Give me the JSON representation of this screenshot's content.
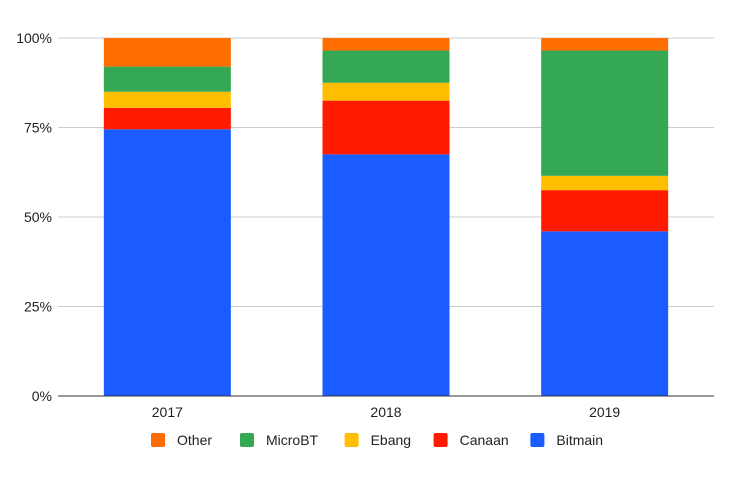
{
  "chart_data": {
    "type": "bar",
    "stacked": true,
    "percent_stacked": true,
    "title": "",
    "xlabel": "",
    "ylabel": "",
    "categories": [
      "2017",
      "2018",
      "2019"
    ],
    "ylim": [
      0,
      100
    ],
    "yticks": [
      "0%",
      "25%",
      "50%",
      "75%",
      "100%"
    ],
    "ytick_values": [
      0,
      25,
      50,
      75,
      100
    ],
    "grid": true,
    "legend_position": "bottom",
    "series": [
      {
        "name": "Bitmain",
        "color": "#1a5cff",
        "values": [
          74.5,
          67.5,
          46
        ]
      },
      {
        "name": "Canaan",
        "color": "#ff1a00",
        "values": [
          6,
          15,
          11.5
        ]
      },
      {
        "name": "Ebang",
        "color": "#ffbf00",
        "values": [
          4.5,
          5,
          4
        ]
      },
      {
        "name": "MicroBT",
        "color": "#34a853",
        "values": [
          7,
          9,
          35
        ]
      },
      {
        "name": "Other",
        "color": "#ff6d01",
        "values": [
          8,
          3.5,
          3.5
        ]
      }
    ],
    "legend_order": [
      "Other",
      "MicroBT",
      "Ebang",
      "Canaan",
      "Bitmain"
    ]
  }
}
